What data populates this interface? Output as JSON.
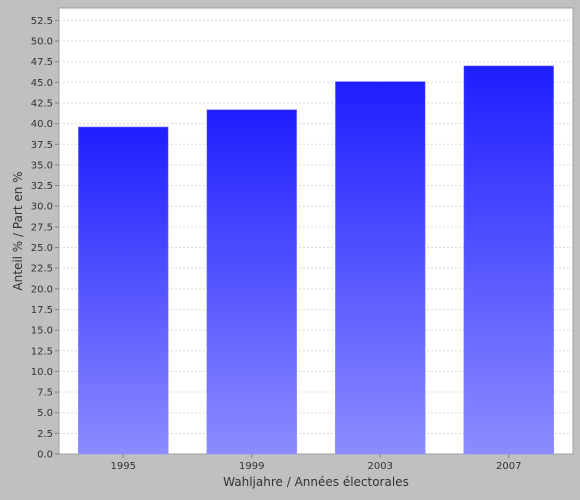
{
  "chart_data": {
    "type": "bar",
    "categories": [
      "1995",
      "1999",
      "2003",
      "2007"
    ],
    "values": [
      39.6,
      41.7,
      45.1,
      47.0
    ],
    "title": "",
    "xlabel": "Wahljahre / Années électorales",
    "ylabel": "Anteil % / Part en %",
    "ylim": [
      0,
      54
    ],
    "ytick_step": 2.5,
    "grid": true,
    "legend": "none",
    "colors": {
      "background": "#c0c0c0",
      "plot_background": "#ffffff",
      "bar_top": "#1e1eff",
      "bar_bottom": "#8c8cff",
      "gridline": "#d8d8d8"
    }
  }
}
